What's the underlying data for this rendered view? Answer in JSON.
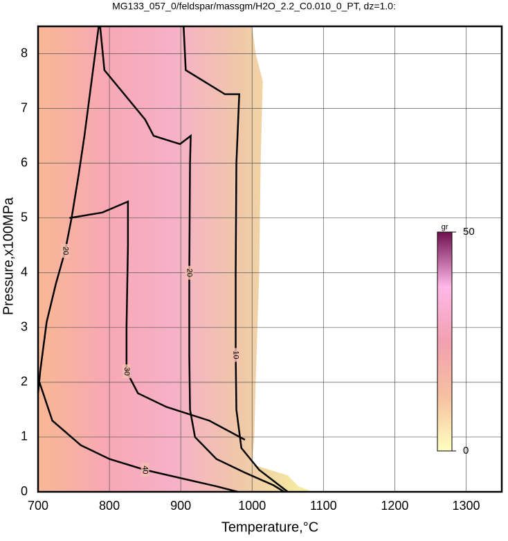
{
  "chart_data": {
    "type": "contour",
    "title": "MG133_057_0/feldspar/massgm/H2O_2.2_C0.010_0_PT, dz=1.0:",
    "xlabel": "Temperature,°C",
    "ylabel": "Pressure,x100MPa",
    "xlim": [
      700,
      1350
    ],
    "ylim": [
      0,
      8.5
    ],
    "xticks": [
      700,
      800,
      900,
      1000,
      1100,
      1200,
      1300
    ],
    "yticks": [
      0,
      1,
      2,
      3,
      4,
      5,
      6,
      7,
      8
    ],
    "grid": true,
    "field_boundary": {
      "x": [
        700,
        700,
        1000,
        1005,
        1015,
        1012,
        1010,
        1005,
        1003,
        1000,
        1050,
        1065,
        1080,
        1080
      ],
      "y": [
        0,
        8.5,
        8.5,
        8.0,
        7.5,
        6.0,
        4.0,
        2.0,
        1.0,
        0.5,
        0.3,
        0.1,
        0.03,
        0
      ]
    },
    "contours": [
      {
        "level": 10,
        "x": [
          904,
          907,
          962,
          982,
          978,
          977,
          977,
          978,
          985,
          1010,
          1040,
          1050
        ],
        "y": [
          8.5,
          7.7,
          7.26,
          7.26,
          6.0,
          4.0,
          2.5,
          1.5,
          0.8,
          0.4,
          0.1,
          0
        ]
      },
      {
        "level": 20,
        "x": [
          787,
          793,
          850,
          862,
          899,
          914,
          913,
          912,
          912,
          913,
          920,
          950,
          990,
          1030,
          1045
        ],
        "y": [
          8.5,
          7.7,
          6.8,
          6.5,
          6.35,
          6.5,
          6.0,
          4.0,
          2.5,
          1.5,
          1.0,
          0.6,
          0.35,
          0.12,
          0
        ]
      },
      {
        "level": 20,
        "x": [
          785,
          775,
          765,
          757,
          747,
          738,
          725,
          712,
          703,
          700
        ],
        "y": [
          8.5,
          7.5,
          6.5,
          5.8,
          5.0,
          4.4,
          3.8,
          3.1,
          2.2,
          1.8
        ]
      },
      {
        "level": 30,
        "x": [
          744,
          790,
          826,
          826,
          824,
          824,
          840,
          880,
          940,
          990
        ],
        "y": [
          5.0,
          5.1,
          5.3,
          4.5,
          3.0,
          2.2,
          1.8,
          1.55,
          1.3,
          0.95
        ]
      },
      {
        "level": 40,
        "x": [
          702,
          720,
          760,
          800,
          850,
          900,
          950,
          980
        ],
        "y": [
          2.0,
          1.3,
          0.85,
          0.6,
          0.4,
          0.25,
          0.1,
          0
        ]
      }
    ],
    "colorbar": {
      "label": "gr",
      "clim": [
        0,
        50
      ],
      "ticks": [
        0,
        50
      ],
      "colors": [
        "#ffffc0",
        "#f6c0a0",
        "#f2a0b0",
        "#ffb8e8",
        "#701050"
      ]
    },
    "field_colors": [
      "#f7b894",
      "#f8a8b4",
      "#f6b0c8",
      "#f0c8a8",
      "#f5f0a0"
    ]
  }
}
